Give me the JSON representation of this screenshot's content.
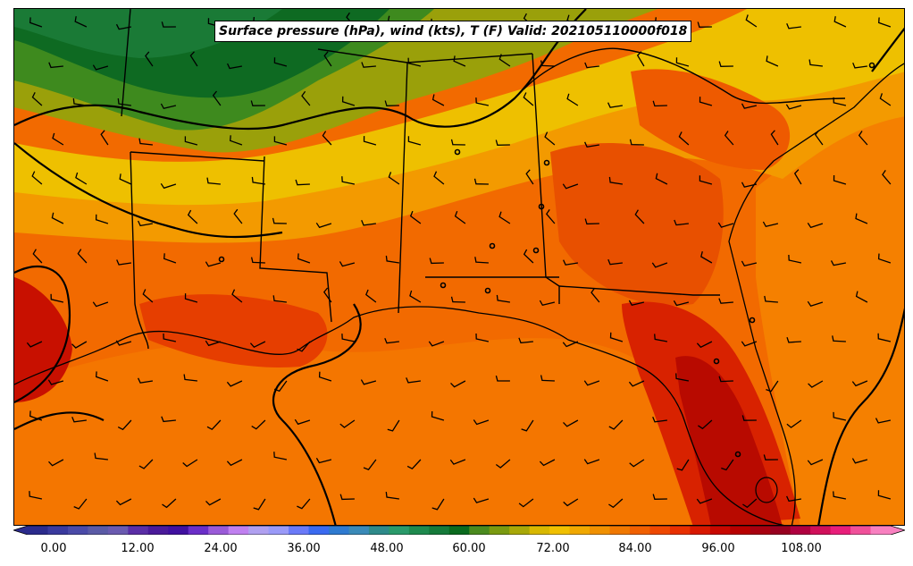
{
  "title": "Surface pressure (hPa), wind (kts), T (F) Valid: 202105110000f018",
  "colorbar": {
    "ticks": [
      "0.00",
      "12.00",
      "24.00",
      "36.00",
      "48.00",
      "60.00",
      "72.00",
      "84.00",
      "96.00",
      "108.00"
    ],
    "colors": [
      "#2b2b8c",
      "#3a3a9e",
      "#4a4aa8",
      "#5a5aa6",
      "#6a5ab0",
      "#5a2ea6",
      "#4a1a9a",
      "#4010a0",
      "#6a2ec8",
      "#9a5ad8",
      "#c080f0",
      "#b0a0f0",
      "#9a9af8",
      "#6a7af8",
      "#3a6af0",
      "#2e7ad0",
      "#3a8ab8",
      "#2e8a8a",
      "#2a9a6a",
      "#1e8a4e",
      "#157a3a",
      "#0a6a1e",
      "#4a8a1e",
      "#7a9a10",
      "#a8a808",
      "#d8b800",
      "#f0c000",
      "#f0a800",
      "#f09000",
      "#f07800",
      "#f06000",
      "#ee4800",
      "#e83000",
      "#d81800",
      "#c80800",
      "#b80000",
      "#a80010",
      "#980020",
      "#b00040",
      "#d0105a",
      "#e81e7a",
      "#f0509a",
      "#f880c0"
    ]
  },
  "map": {
    "pressure_contours": "black isobars",
    "wind_barbs": "black barbs",
    "region": "southeastern United States and Gulf of Mexico"
  }
}
